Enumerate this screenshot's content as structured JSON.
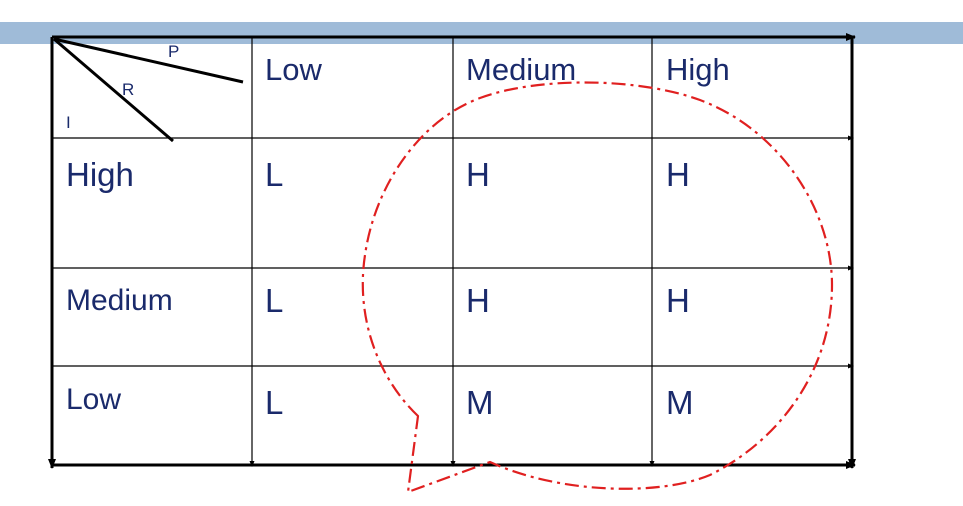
{
  "corner": {
    "labels": {
      "p": "P",
      "r": "R",
      "i": "I"
    }
  },
  "columns": [
    "Low",
    "Medium",
    "High"
  ],
  "rows": [
    {
      "label": "High",
      "values": [
        "L",
        "H",
        "H"
      ]
    },
    {
      "label": "Medium",
      "values": [
        "L",
        "H",
        "H"
      ]
    },
    {
      "label": "Low",
      "values": [
        "L",
        "M",
        "M"
      ]
    }
  ],
  "colors": {
    "header_bar": "#9fbbd8",
    "text": "#1a2a6b",
    "callout": "#e02020",
    "grid": "#000000"
  }
}
